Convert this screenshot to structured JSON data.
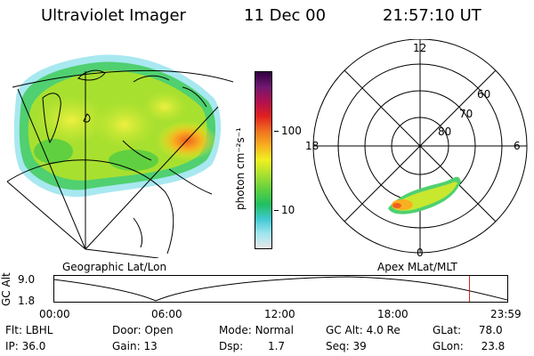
{
  "header": {
    "instrument": "Ultraviolet Imager",
    "date": "11 Dec 00",
    "time": "21:57:10 UT"
  },
  "geo_panel": {
    "caption": "Geographic Lat/Lon"
  },
  "colorbar": {
    "unit_label": "photon cm⁻²s⁻¹",
    "tick_100": "100",
    "tick_10": "10",
    "scale": "log",
    "colors": [
      "#e8e8e8",
      "#9fe5f0",
      "#40c8d0",
      "#20c060",
      "#60d040",
      "#a8e030",
      "#f0f020",
      "#f8b020",
      "#f07020",
      "#e02020",
      "#b01050",
      "#701870",
      "#300040"
    ]
  },
  "polar_panel": {
    "caption": "Apex MLat/MLT",
    "mlt_top": "12",
    "mlt_left": "18",
    "mlt_right": "6",
    "mlt_bottom": "0",
    "lat_60": "60",
    "lat_70": "70",
    "lat_80": "80"
  },
  "altitude_plot": {
    "ylabel": "GC Alt",
    "ytick_high": "9.0",
    "ytick_low": "1.8",
    "xticks": [
      "00:00",
      "06:00",
      "12:00",
      "18:00",
      "23:59"
    ],
    "current_marker_color": "#e02020"
  },
  "status": {
    "flt_label": "Flt:",
    "flt_value": "LBHL",
    "ip_label": "IP:",
    "ip_value": "36.0",
    "door_label": "Door:",
    "door_value": "Open",
    "gain_label": "Gain:",
    "gain_value": "13",
    "mode_label": "Mode:",
    "mode_value": "Normal",
    "dsp_label": "Dsp:",
    "dsp_value": "1.7",
    "gcalt_label": "GC Alt:",
    "gcalt_value": "4.0 Re",
    "seq_label": "Seq:",
    "seq_value": "39",
    "glat_label": "GLat:",
    "glat_value": "78.0",
    "glon_label": "GLon:",
    "glon_value": "23.8"
  }
}
